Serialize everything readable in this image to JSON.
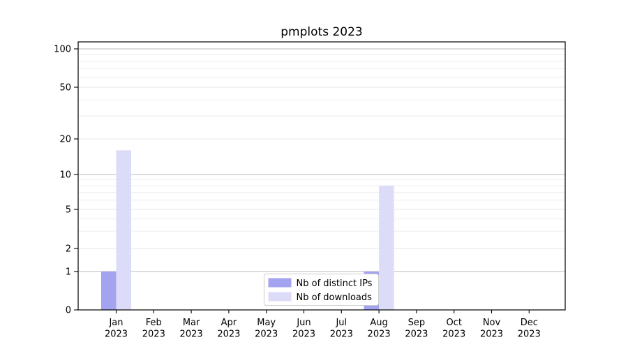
{
  "chart_data": {
    "type": "bar",
    "title": "pmplots 2023",
    "categories": [
      "Jan",
      "Feb",
      "Mar",
      "Apr",
      "May",
      "Jun",
      "Jul",
      "Aug",
      "Sep",
      "Oct",
      "Nov",
      "Dec"
    ],
    "category_year": "2023",
    "series": [
      {
        "name": "Nb of distinct IPs",
        "color": "#a3a3f0",
        "values": [
          1,
          0,
          0,
          0,
          0,
          0,
          0,
          1,
          0,
          0,
          0,
          0
        ]
      },
      {
        "name": "Nb of downloads",
        "color": "#dcdcf8",
        "values": [
          16,
          0,
          0,
          0,
          0,
          0,
          0,
          8,
          0,
          0,
          0,
          0
        ]
      }
    ],
    "yticks": [
      0,
      1,
      2,
      5,
      10,
      20,
      50,
      100
    ],
    "ytick_labels": [
      "0",
      "1",
      "2",
      "5",
      "10",
      "20",
      "50",
      "100"
    ],
    "y_minor_ticks": [
      3,
      4,
      6,
      7,
      8,
      9,
      30,
      40,
      60,
      70,
      80,
      90
    ],
    "y_major_grid_values": [
      1,
      10,
      100
    ],
    "scale": "symlog",
    "ylim": [
      0,
      110
    ],
    "grid": true,
    "legend_position": "lower center",
    "colors": {
      "major_grid": "#b8b8b8",
      "minor_grid": "#ebebeb",
      "labeled_grid": "#e4e4e4",
      "spine": "#000000",
      "legend_border": "#cccccc",
      "legend_bg": "#ffffff"
    }
  }
}
